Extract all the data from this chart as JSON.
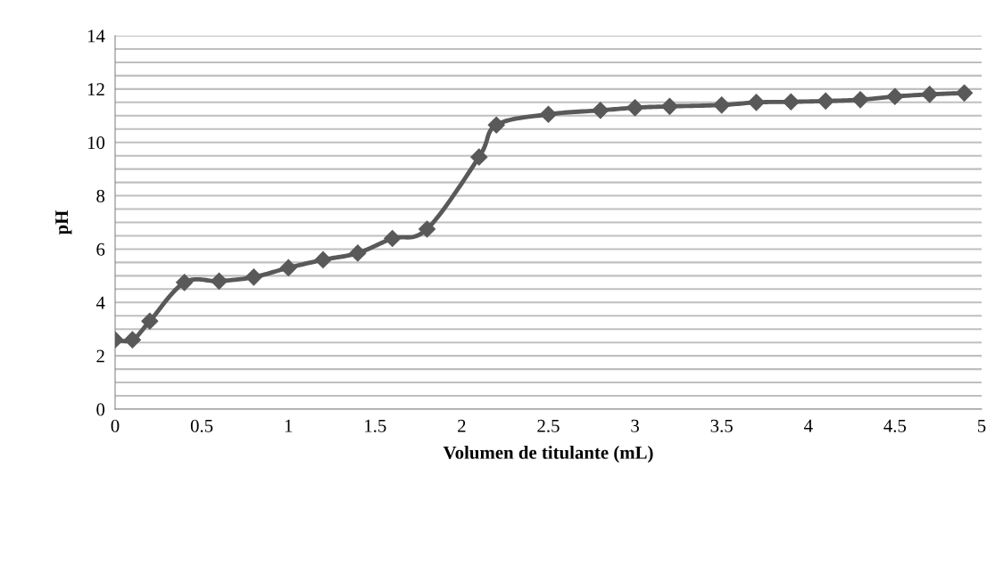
{
  "chart_data": {
    "type": "line",
    "xlabel": "Volumen de titulante (mL)",
    "ylabel": "pH",
    "x": [
      0,
      0.1,
      0.2,
      0.4,
      0.6,
      0.8,
      1.0,
      1.2,
      1.4,
      1.6,
      1.8,
      2.1,
      2.2,
      2.5,
      2.8,
      3.0,
      3.2,
      3.5,
      3.7,
      3.9,
      4.1,
      4.3,
      4.5,
      4.7,
      4.9
    ],
    "series": [
      {
        "color": "#595959",
        "values": [
          2.6,
          2.6,
          3.3,
          4.75,
          4.8,
          4.95,
          5.3,
          5.6,
          5.85,
          6.4,
          6.75,
          9.45,
          10.65,
          11.05,
          11.2,
          11.3,
          11.35,
          11.4,
          11.5,
          11.52,
          11.55,
          11.6,
          11.72,
          11.8,
          11.85
        ]
      }
    ],
    "xlim": [
      0,
      5
    ],
    "xticks": [
      0,
      0.5,
      1,
      1.5,
      2,
      2.5,
      3,
      3.5,
      4,
      4.5,
      5
    ],
    "ylim": [
      0,
      14
    ],
    "yticks": [
      0,
      {
        "value": 0.5,
        "label": null
      },
      {
        "value": 1,
        "label": null
      },
      {
        "value": 1.5,
        "label": null
      },
      2,
      {
        "value": 2.5,
        "label": null
      },
      {
        "value": 3,
        "label": null
      },
      {
        "value": 3.5,
        "label": null
      },
      4,
      {
        "value": 4.5,
        "label": null
      },
      {
        "value": 5,
        "label": null
      },
      {
        "value": 5.5,
        "label": null
      },
      6,
      {
        "value": 6.5,
        "label": null
      },
      {
        "value": 7,
        "label": null
      },
      {
        "value": 7.5,
        "label": null
      },
      8,
      {
        "value": 8.5,
        "label": null
      },
      {
        "value": 9,
        "label": null
      },
      {
        "value": 9.5,
        "label": null
      },
      10,
      {
        "value": 10.5,
        "label": null
      },
      {
        "value": 11,
        "label": null
      },
      {
        "value": 11.5,
        "label": null
      },
      12,
      {
        "value": 12.5,
        "label": null
      },
      {
        "value": 13,
        "label": null
      },
      {
        "value": 13.5,
        "label": null
      },
      14
    ],
    "grid": "y",
    "marker": "diamond",
    "line_style": "solid",
    "legend": false
  }
}
